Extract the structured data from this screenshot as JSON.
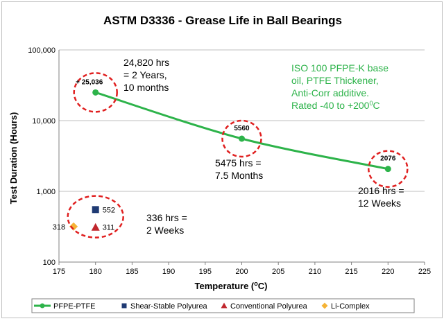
{
  "chart_data": {
    "type": "scatter",
    "title": "ASTM D3336 - Grease Life in Ball Bearings",
    "xlabel": "Temperature (°C)",
    "xlabel_main": "Temperature (",
    "xlabel_sup": "o",
    "xlabel_end": "C)",
    "ylabel": "Test Duration (Hours)",
    "xlim": [
      175,
      225
    ],
    "ylim": [
      100,
      100000
    ],
    "y_scale": "log",
    "x_ticks": [
      "175",
      "180",
      "185",
      "190",
      "195",
      "200",
      "205",
      "210",
      "215",
      "220",
      "225"
    ],
    "y_ticks": [
      {
        "value": 100,
        "label": "100"
      },
      {
        "value": 1000,
        "label": "1,000"
      },
      {
        "value": 10000,
        "label": "10,000"
      },
      {
        "value": 100000,
        "label": "100,000"
      }
    ],
    "grid": "horizontal",
    "legend_position": "bottom",
    "series": [
      {
        "name": "PFPE-PTFE",
        "kind": "line",
        "color": "#2db34a",
        "marker": "circle",
        "x": [
          180,
          200,
          220
        ],
        "y": [
          25036,
          5560,
          2076
        ]
      },
      {
        "name": "Shear-Stable Polyurea",
        "kind": "scatter",
        "color": "#1f3a73",
        "marker": "square",
        "x": [
          180
        ],
        "y": [
          552
        ]
      },
      {
        "name": "Conventional Polyurea",
        "kind": "scatter",
        "color": "#c0272d",
        "marker": "triangle",
        "x": [
          180
        ],
        "y": [
          311
        ]
      },
      {
        "name": "Li-Complex",
        "kind": "scatter",
        "color": "#f5b335",
        "marker": "diamond",
        "x": [
          177
        ],
        "y": [
          318
        ]
      }
    ],
    "data_labels": [
      {
        "text": "+ 25,036",
        "x": 180,
        "y": 25036
      },
      {
        "text": "5560",
        "x": 200,
        "y": 5560
      },
      {
        "text": "2076",
        "x": 220,
        "y": 2076
      },
      {
        "text": "552",
        "x": 180,
        "y": 552
      },
      {
        "text": "311",
        "x": 180,
        "y": 311
      },
      {
        "text": "318",
        "x": 177,
        "y": 318
      }
    ],
    "highlight_circles_at": [
      {
        "x": 180,
        "y": 25036
      },
      {
        "x": 200,
        "y": 5560
      },
      {
        "x": 220,
        "y": 2076
      },
      {
        "x": 180,
        "y": 400
      }
    ],
    "annotations": {
      "pfpe_180": [
        "24,820 hrs",
        "= 2 Years,",
        "10 months"
      ],
      "pfpe_200": [
        "5475 hrs =",
        "7.5 Months"
      ],
      "pfpe_220": [
        "2016 hrs =",
        "12 Weeks"
      ],
      "polyurea_180": [
        "336 hrs =",
        "2 Weeks"
      ],
      "spec": [
        "ISO 100 PFPE-K base",
        "oil, PTFE Thickener,",
        "Anti-Corr additive.",
        "Rated -40 to +200°C"
      ],
      "spec_last_main": "Rated -40 to +200",
      "spec_last_sup": "0",
      "spec_last_end": "C"
    }
  }
}
